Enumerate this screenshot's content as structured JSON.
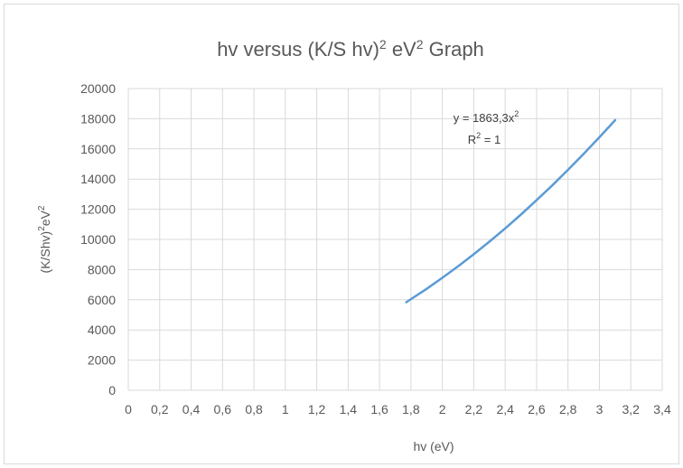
{
  "chart_data": {
    "type": "line",
    "title": {
      "main": "hv versus (K/S hv)",
      "sup1": "2",
      "mid": " eV",
      "sup2": "2",
      "end": " Graph"
    },
    "xlabel": "hv (eV)",
    "ylabel": {
      "part1": "(K/Shv)",
      "sup1": "2",
      "part2": "eV",
      "sup2": "2"
    },
    "xlim": [
      0,
      3.4
    ],
    "ylim": [
      0,
      20000
    ],
    "x_ticks": [
      "0",
      "0,2",
      "0,4",
      "0,6",
      "0,8",
      "1",
      "1,2",
      "1,4",
      "1,6",
      "1,8",
      "2",
      "2,2",
      "2,4",
      "2,6",
      "2,8",
      "3",
      "3,2",
      "3,4"
    ],
    "y_ticks": [
      "0",
      "2000",
      "4000",
      "6000",
      "8000",
      "10000",
      "12000",
      "14000",
      "16000",
      "18000",
      "20000"
    ],
    "grid": true,
    "series": [
      {
        "color": "#5b9bd5",
        "x": [
          1.77,
          1.9,
          2.0,
          2.1,
          2.2,
          2.3,
          2.4,
          2.5,
          2.6,
          2.7,
          2.8,
          2.9,
          3.0,
          3.1
        ],
        "values": [
          5837,
          6726,
          7453,
          8217,
          9019,
          9857,
          10733,
          11646,
          12596,
          13583,
          14608,
          15670,
          16770,
          17906
        ]
      }
    ],
    "annotation": {
      "equation_prefix": "y = 1863,3x",
      "equation_sup": "2",
      "r2_prefix": "R",
      "r2_sup": "2",
      "r2_suffix": " = 1"
    }
  }
}
